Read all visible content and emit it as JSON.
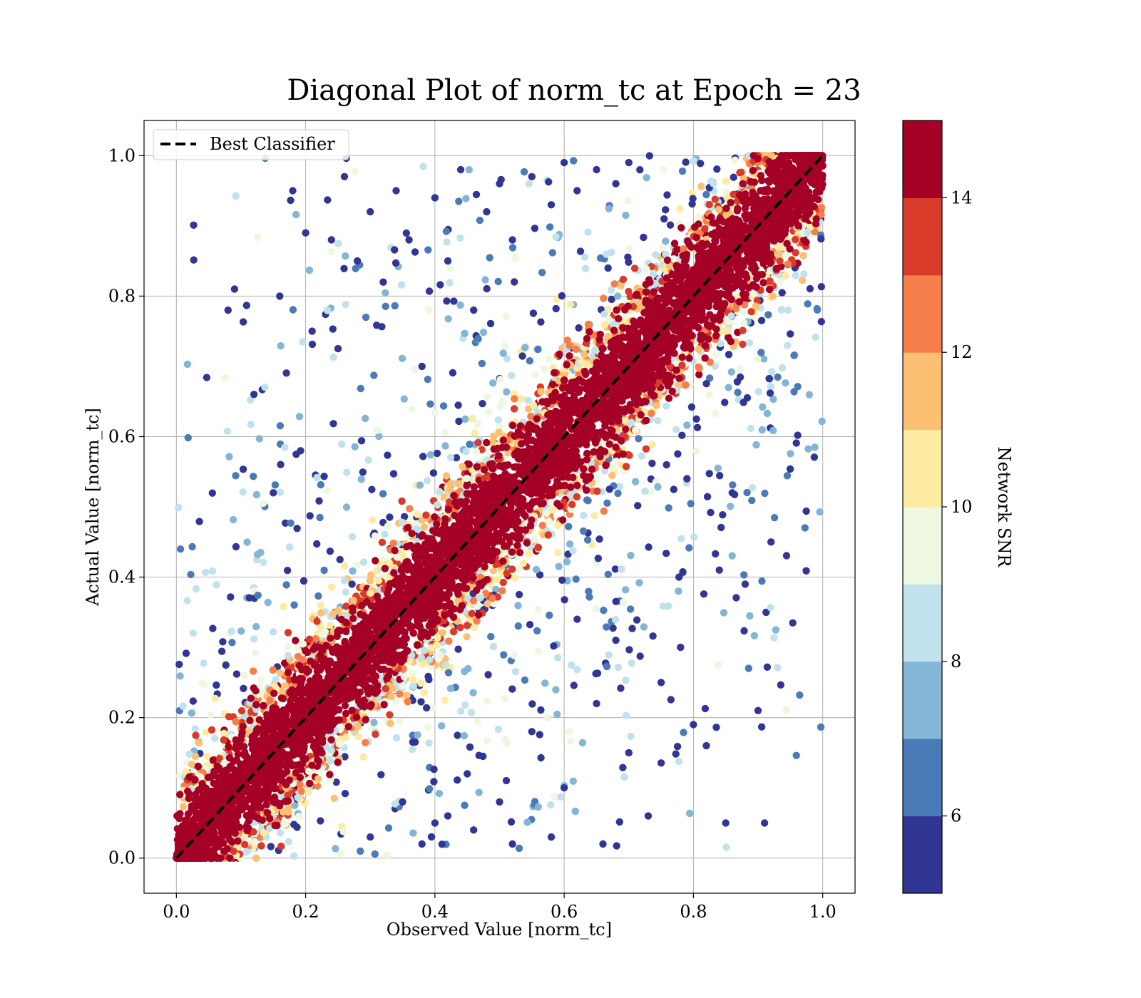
{
  "chart_data": {
    "type": "scatter",
    "title": "Diagonal Plot of norm_tc at Epoch = 23",
    "xlabel": "Observed Value [norm_tc]",
    "ylabel": "Actual Value [norm_tc]",
    "xlim": [
      -0.05,
      1.05
    ],
    "ylim": [
      -0.05,
      1.05
    ],
    "x_ticks": [
      0.0,
      0.2,
      0.4,
      0.6,
      0.8,
      1.0
    ],
    "y_ticks": [
      0.0,
      0.2,
      0.4,
      0.6,
      0.8,
      1.0
    ],
    "x_tick_labels": [
      "0.0",
      "0.2",
      "0.4",
      "0.6",
      "0.8",
      "1.0"
    ],
    "y_tick_labels": [
      "0.0",
      "0.2",
      "0.4",
      "0.6",
      "0.8",
      "1.0"
    ],
    "grid": true,
    "legend": {
      "placement": "upper-left",
      "entries": [
        {
          "label": "Best Classifier",
          "style": "dashed",
          "color": "#000000"
        }
      ]
    },
    "reference_line": {
      "name": "Best Classifier",
      "x": [
        0,
        1
      ],
      "y": [
        0,
        1
      ]
    },
    "colorbar": {
      "label": "Network SNR",
      "range": [
        5,
        15
      ],
      "ticks": [
        6,
        8,
        10,
        12,
        14
      ],
      "tick_labels": [
        "6",
        "8",
        "10",
        "12",
        "14"
      ],
      "bins": [
        {
          "from": 5,
          "to": 6,
          "color": "#313695"
        },
        {
          "from": 6,
          "to": 7,
          "color": "#4a7ab7"
        },
        {
          "from": 7,
          "to": 8,
          "color": "#82b5d6"
        },
        {
          "from": 8,
          "to": 9,
          "color": "#c1e2ec"
        },
        {
          "from": 9,
          "to": 10,
          "color": "#eef7e0"
        },
        {
          "from": 10,
          "to": 11,
          "color": "#fdeba2"
        },
        {
          "from": 11,
          "to": 12,
          "color": "#fdbf71"
        },
        {
          "from": 12,
          "to": 13,
          "color": "#f67e4b"
        },
        {
          "from": 13,
          "to": 14,
          "color": "#d93b2b"
        },
        {
          "from": 14,
          "to": 15,
          "color": "#a50026"
        }
      ]
    },
    "series": [
      {
        "description_of_distribution": "dense band along diagonal",
        "points_high_snr_band": [
          [
            0.02,
            0.03
          ],
          [
            0.05,
            0.08
          ],
          [
            0.08,
            0.06
          ],
          [
            0.1,
            0.13
          ],
          [
            0.12,
            0.1
          ],
          [
            0.15,
            0.18
          ],
          [
            0.18,
            0.15
          ],
          [
            0.2,
            0.22
          ],
          [
            0.22,
            0.19
          ],
          [
            0.25,
            0.27
          ],
          [
            0.28,
            0.25
          ],
          [
            0.3,
            0.32
          ],
          [
            0.32,
            0.29
          ],
          [
            0.35,
            0.37
          ],
          [
            0.38,
            0.35
          ],
          [
            0.4,
            0.42
          ],
          [
            0.42,
            0.39
          ],
          [
            0.45,
            0.47
          ],
          [
            0.48,
            0.45
          ],
          [
            0.5,
            0.52
          ],
          [
            0.52,
            0.49
          ],
          [
            0.55,
            0.57
          ],
          [
            0.58,
            0.55
          ],
          [
            0.6,
            0.62
          ],
          [
            0.62,
            0.59
          ],
          [
            0.65,
            0.67
          ],
          [
            0.68,
            0.65
          ],
          [
            0.7,
            0.72
          ],
          [
            0.72,
            0.69
          ],
          [
            0.75,
            0.77
          ],
          [
            0.78,
            0.75
          ],
          [
            0.8,
            0.82
          ],
          [
            0.82,
            0.79
          ],
          [
            0.85,
            0.87
          ],
          [
            0.88,
            0.85
          ],
          [
            0.9,
            0.92
          ],
          [
            0.92,
            0.89
          ],
          [
            0.95,
            0.97
          ],
          [
            0.97,
            0.94
          ],
          [
            0.99,
            0.99
          ]
        ],
        "points_low_snr_scatter_upper": [
          [
            0.08,
            0.78
          ],
          [
            0.09,
            0.81
          ],
          [
            0.12,
            0.66
          ],
          [
            0.16,
            0.8
          ],
          [
            0.18,
            0.95
          ],
          [
            0.2,
            0.89
          ],
          [
            0.21,
            0.75
          ],
          [
            0.24,
            0.88
          ],
          [
            0.26,
            0.97
          ],
          [
            0.28,
            0.85
          ],
          [
            0.3,
            0.92
          ],
          [
            0.32,
            0.82
          ],
          [
            0.34,
            0.95
          ],
          [
            0.36,
            0.88
          ],
          [
            0.38,
            0.7
          ],
          [
            0.4,
            0.94
          ],
          [
            0.42,
            0.85
          ],
          [
            0.44,
            0.98
          ],
          [
            0.46,
            0.78
          ],
          [
            0.48,
            0.92
          ],
          [
            0.5,
            0.96
          ],
          [
            0.52,
            0.88
          ],
          [
            0.55,
            0.97
          ],
          [
            0.58,
            0.93
          ],
          [
            0.6,
            0.99
          ],
          [
            0.62,
            0.95
          ],
          [
            0.65,
            0.98
          ],
          [
            0.68,
            0.96
          ],
          [
            0.7,
            0.99
          ],
          [
            0.15,
            0.52
          ]
        ],
        "points_low_snr_scatter_lower": [
          [
            0.3,
            0.03
          ],
          [
            0.35,
            0.08
          ],
          [
            0.4,
            0.05
          ],
          [
            0.45,
            0.12
          ],
          [
            0.5,
            0.08
          ],
          [
            0.55,
            0.18
          ],
          [
            0.6,
            0.1
          ],
          [
            0.65,
            0.22
          ],
          [
            0.7,
            0.15
          ],
          [
            0.75,
            0.25
          ],
          [
            0.78,
            0.3
          ],
          [
            0.8,
            0.19
          ],
          [
            0.82,
            0.16
          ],
          [
            0.85,
            0.05
          ],
          [
            0.88,
            0.39
          ],
          [
            0.9,
            0.21
          ],
          [
            0.91,
            0.05
          ],
          [
            0.92,
            0.45
          ],
          [
            0.84,
            0.41
          ],
          [
            0.79,
            0.54
          ],
          [
            0.73,
            0.06
          ],
          [
            0.66,
            0.02
          ],
          [
            0.58,
            0.03
          ],
          [
            0.52,
            0.02
          ],
          [
            0.46,
            0.04
          ],
          [
            0.42,
            0.06
          ],
          [
            0.38,
            0.02
          ],
          [
            0.62,
            0.34
          ],
          [
            0.68,
            0.31
          ],
          [
            0.86,
            0.52
          ]
        ]
      }
    ]
  }
}
